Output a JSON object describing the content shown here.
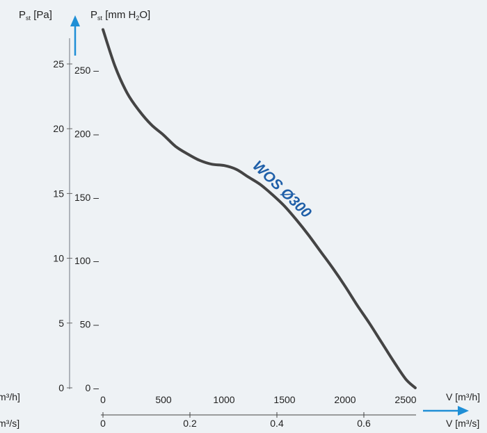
{
  "chart_data": {
    "type": "line",
    "y_axis_left": {
      "label_main": "P",
      "label_sub": "st",
      "label_rest": " [Pa]",
      "ticks": [
        0,
        5,
        10,
        15,
        20,
        25
      ],
      "ylim": [
        0,
        28
      ]
    },
    "y_axis_right": {
      "label_main": "P",
      "label_sub": "st",
      "label_rest": " [mm H",
      "label_sub2": "2",
      "label_end": "O]",
      "ticks": [
        0,
        50,
        100,
        150,
        200,
        250
      ]
    },
    "x_axis_primary": {
      "label": "V [m³/h]",
      "left_label": "m³/h]",
      "ticks": [
        0,
        500,
        1000,
        1500,
        2000,
        2500
      ]
    },
    "x_axis_secondary": {
      "label": "V [m³/s]",
      "left_label": "m³/s]",
      "ticks": [
        "0",
        "0.2",
        "0.4",
        "0.6"
      ]
    },
    "series": [
      {
        "name": "WOS Ø300",
        "color": "#444444",
        "x": [
          0,
          100,
          200,
          300,
          400,
          500,
          600,
          700,
          800,
          900,
          1000,
          1100,
          1200,
          1300,
          1400,
          1500,
          1600,
          1700,
          1800,
          1900,
          2000,
          2100,
          2200,
          2300,
          2400,
          2500,
          2580
        ],
        "y_mmH2O": [
          282,
          253,
          232,
          218,
          207,
          199,
          190,
          184,
          179,
          176,
          175,
          172,
          166,
          160,
          152,
          143,
          132,
          120,
          107,
          94,
          80,
          65,
          51,
          36,
          21,
          7,
          0
        ]
      }
    ]
  }
}
